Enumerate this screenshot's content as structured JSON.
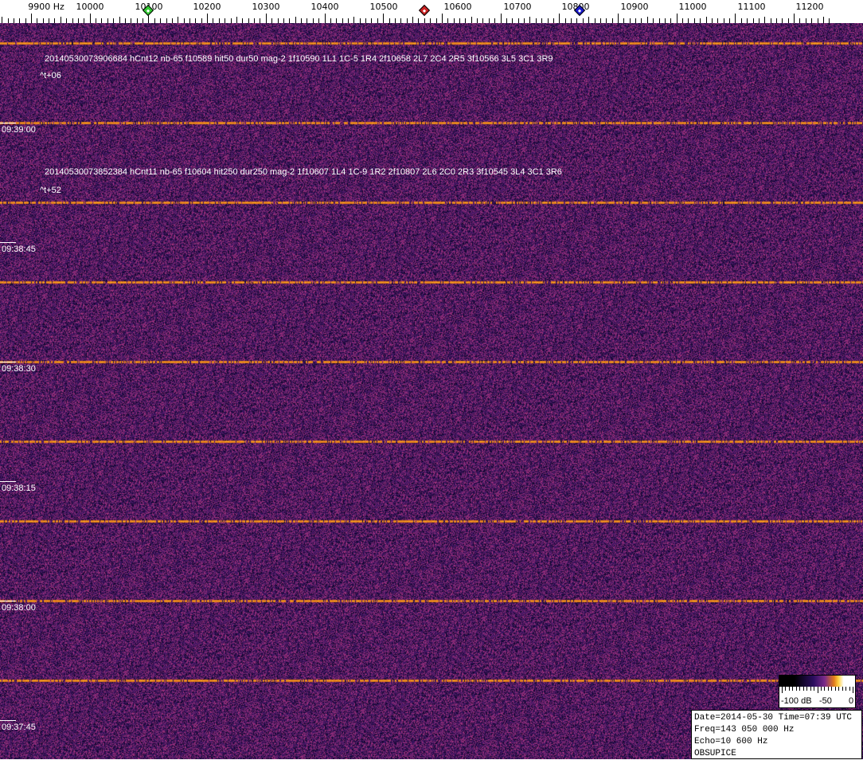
{
  "axis": {
    "unit_label": "9900 Hz",
    "labels": [
      "10000",
      "10100",
      "10200",
      "10300",
      "10400",
      "10500",
      "10600",
      "10700",
      "10800",
      "10900",
      "11000",
      "11100",
      "11200"
    ],
    "freq_start": 9900,
    "freq_end": 11260
  },
  "markers": [
    {
      "name": "green-marker",
      "freq": 10100,
      "color": "#33cc33"
    },
    {
      "name": "red-marker",
      "freq": 10570,
      "color": "#cc2222"
    },
    {
      "name": "blue-marker",
      "freq": 10835,
      "color": "#1a1acc"
    }
  ],
  "time_labels": [
    "09:39:00",
    "09:38:45",
    "09:38:30",
    "09:38:15",
    "09:38:00",
    "09:37:45"
  ],
  "annotations": [
    {
      "text": "20140530073906684 hCnt12 nb-65 f10589 hit50 dur50 mag-2 1f10590 1L1 1C-5 1R4 2f10658 2L7 2C4 2R5 3f10566 3L5 3C1 3R9",
      "offset": "^t+06"
    },
    {
      "text": "20140530073852384 hCnt11 nb-65 f10604 hit250 dur250 mag-2 1f10607 1L4 1C-9 1R2 2f10807 2L6 2C0 2R3 3f10545 3L4 3C1 3R6",
      "offset": "^t+52"
    }
  ],
  "colorbar": {
    "labels": [
      "-100 dB",
      "-50",
      "0"
    ]
  },
  "info": {
    "line1": "Date=2014-05-30 Time=07:39 UTC",
    "line2": "Freq=143 050 000 Hz",
    "line3": "Echo=10 600 Hz",
    "line4": "OBSUPICE"
  },
  "colors": {
    "background": "#3a1a6e",
    "signal": "#ffb030"
  }
}
